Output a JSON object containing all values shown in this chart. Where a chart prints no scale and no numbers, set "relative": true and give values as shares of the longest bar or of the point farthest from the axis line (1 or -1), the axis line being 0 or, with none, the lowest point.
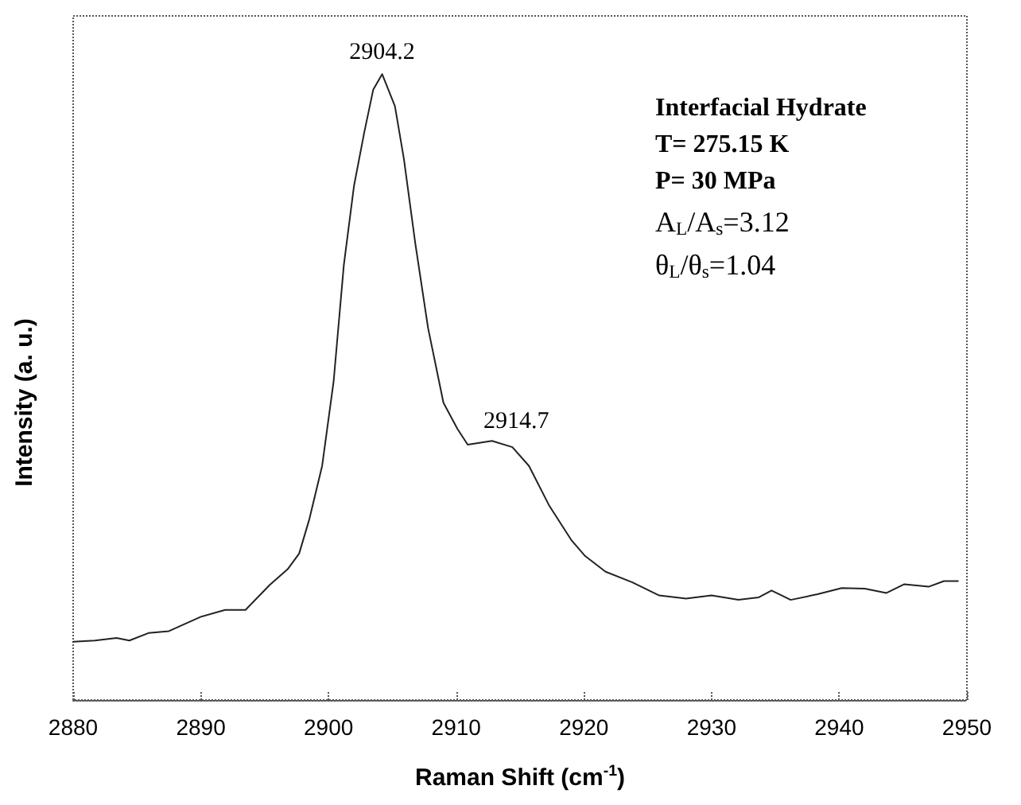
{
  "chart_data": {
    "type": "line",
    "relative": true,
    "xlabel": "Raman Shift (cm$^{-1}$)",
    "ylabel": "Intensity (a. u.)",
    "xlim": [
      2880,
      2950
    ],
    "xticks": [
      2880,
      2890,
      2900,
      2910,
      2920,
      2930,
      2940,
      2950
    ],
    "grid": false,
    "marker": "none",
    "line_style": "solid",
    "annotations": [
      {
        "text": "2904.2",
        "x": 2904.2,
        "y": 1
      },
      {
        "text": "2914.7",
        "x": 2914.7,
        "y": 0.41
      },
      "Interfacial Hydrate",
      "T= 275.15 K",
      "P= 30 MPa",
      "A$_{L}$/A$_{s}$=3.12",
      "θ$_{L}$/θ$_{s}$=1.04"
    ],
    "series": [
      {
        "color": "#222222",
        "x": [
          2880,
          2881.7,
          2883.4,
          2884.4,
          2885.9,
          2887.5,
          2890.0,
          2891.9,
          2893.5,
          2895.4,
          2896.8,
          2897.7,
          2898.5,
          2899.5,
          2900.4,
          2901.2,
          2902.0,
          2902.8,
          2903.5,
          2904.2,
          2905.2,
          2905.9,
          2906.8,
          2907.8,
          2909.0,
          2910.1,
          2910.9,
          2912.8,
          2914.4,
          2915.7,
          2917.3,
          2919.0,
          2920.1,
          2921.7,
          2923.8,
          2925.9,
          2928.0,
          2930.0,
          2932.1,
          2933.7,
          2934.7,
          2936.2,
          2938.3,
          2940.2,
          2942.0,
          2943.7,
          2945.1,
          2947.0,
          2948.2,
          2949.3
        ],
        "values": [
          0.093,
          0.095,
          0.099,
          0.095,
          0.107,
          0.11,
          0.133,
          0.144,
          0.144,
          0.184,
          0.209,
          0.234,
          0.289,
          0.374,
          0.509,
          0.695,
          0.822,
          0.907,
          0.975,
          1.0,
          0.949,
          0.865,
          0.729,
          0.594,
          0.475,
          0.433,
          0.408,
          0.414,
          0.404,
          0.374,
          0.31,
          0.256,
          0.23,
          0.205,
          0.188,
          0.167,
          0.162,
          0.167,
          0.16,
          0.164,
          0.175,
          0.16,
          0.169,
          0.179,
          0.178,
          0.171,
          0.185,
          0.181,
          0.19,
          0.19
        ]
      }
    ]
  }
}
